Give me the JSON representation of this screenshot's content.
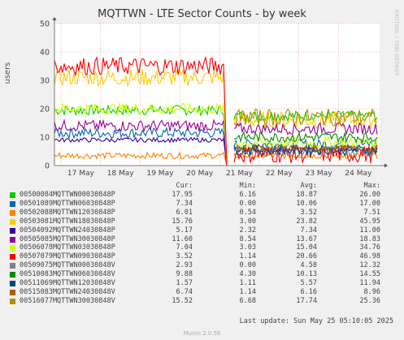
{
  "title": "MQTTWN - LTE Sector Counts - by week",
  "side_text": "RRDTOOL / TOBI OETIKER",
  "footer": {
    "last_update": "Last update: Sun May 25 05:10:05 2025",
    "munin": "Munin 2.0.56"
  },
  "headers": {
    "cur": "Cur:",
    "min": "Min:",
    "avg": "Avg:",
    "max": "Max:"
  },
  "chart_data": {
    "type": "line",
    "ylabel": "users",
    "ylim": [
      0,
      50
    ],
    "yticks": [
      0,
      10,
      20,
      30,
      40,
      50
    ],
    "xticks": [
      "17 May",
      "18 May",
      "19 May",
      "20 May",
      "21 May",
      "22 May",
      "23 May",
      "24 May"
    ],
    "grid": true,
    "series": [
      {
        "name": "00500084MQTTWN00030848P",
        "color": "#00cc00",
        "cur": "17.95",
        "min": "6.16",
        "avg": "18.87",
        "max": "26.00",
        "level_a": 19.5,
        "level_b": 17.5,
        "noise": 1.8
      },
      {
        "name": "00501089MQTTWN06030848P",
        "color": "#0066b3",
        "cur": "7.34",
        "min": "0.00",
        "avg": "10.06",
        "max": "17.00",
        "level_a": 11.5,
        "level_b": 7.5,
        "noise": 1.8
      },
      {
        "name": "00502088MQTTWN12030848P",
        "color": "#ff8000",
        "cur": "6.01",
        "min": "0.54",
        "avg": "3.52",
        "max": "7.51",
        "level_a": 3.5,
        "level_b": 3.5,
        "noise": 1.1
      },
      {
        "name": "00503081MQTTWN18030848P",
        "color": "#ffcc00",
        "cur": "15.76",
        "min": "3.00",
        "avg": "23.82",
        "max": "45.95",
        "level_a": 31,
        "level_b": 16,
        "noise": 3.0
      },
      {
        "name": "00504092MQTTWN24030848P",
        "color": "#330099",
        "cur": "5.17",
        "min": "2.32",
        "avg": "7.34",
        "max": "11.00",
        "level_a": 9,
        "level_b": 5.5,
        "noise": 0.8
      },
      {
        "name": "00505085MQTTWN30030848P",
        "color": "#990099",
        "cur": "11.60",
        "min": "8.54",
        "avg": "13.67",
        "max": "18.83",
        "level_a": 14,
        "level_b": 13,
        "noise": 2.0
      },
      {
        "name": "00506078MQTTWN03030848P",
        "color": "#ccff00",
        "cur": "7.04",
        "min": "3.03",
        "avg": "15.04",
        "max": "34.76",
        "level_a": 20,
        "level_b": 8,
        "noise": 2.0
      },
      {
        "name": "00507079MQTTWN09030848P",
        "color": "#ff0000",
        "cur": "3.52",
        "min": "1.14",
        "avg": "20.66",
        "max": "46.98",
        "level_a": 35,
        "level_b": 4,
        "noise": 3.2
      },
      {
        "name": "00509075MQTTWN00030848V",
        "color": "#808080",
        "cur": "2.93",
        "min": "0.00",
        "avg": "4.58",
        "max": "12.32",
        "level_a": 0,
        "level_b": 5,
        "noise": 1.8
      },
      {
        "name": "00510083MQTTWN06030848V",
        "color": "#008f00",
        "cur": "9.88",
        "min": "4.30",
        "avg": "10.13",
        "max": "14.55",
        "level_a": 0,
        "level_b": 10,
        "noise": 1.8
      },
      {
        "name": "00511069MQTTWN12030848V",
        "color": "#00487d",
        "cur": "1.57",
        "min": "1.11",
        "avg": "5.57",
        "max": "11.94",
        "level_a": 0,
        "level_b": 5.5,
        "noise": 1.8
      },
      {
        "name": "00515083MQTTWN24030848V",
        "color": "#b35a00",
        "cur": "6.74",
        "min": "1.14",
        "avg": "6.16",
        "max": "8.96",
        "level_a": 0,
        "level_b": 6,
        "noise": 1.2
      },
      {
        "name": "00516077MQTTWN30030848V",
        "color": "#b38f00",
        "cur": "15.52",
        "min": "6.68",
        "avg": "17.74",
        "max": "25.36",
        "level_a": 0,
        "level_b": 17,
        "noise": 3.0
      }
    ]
  }
}
